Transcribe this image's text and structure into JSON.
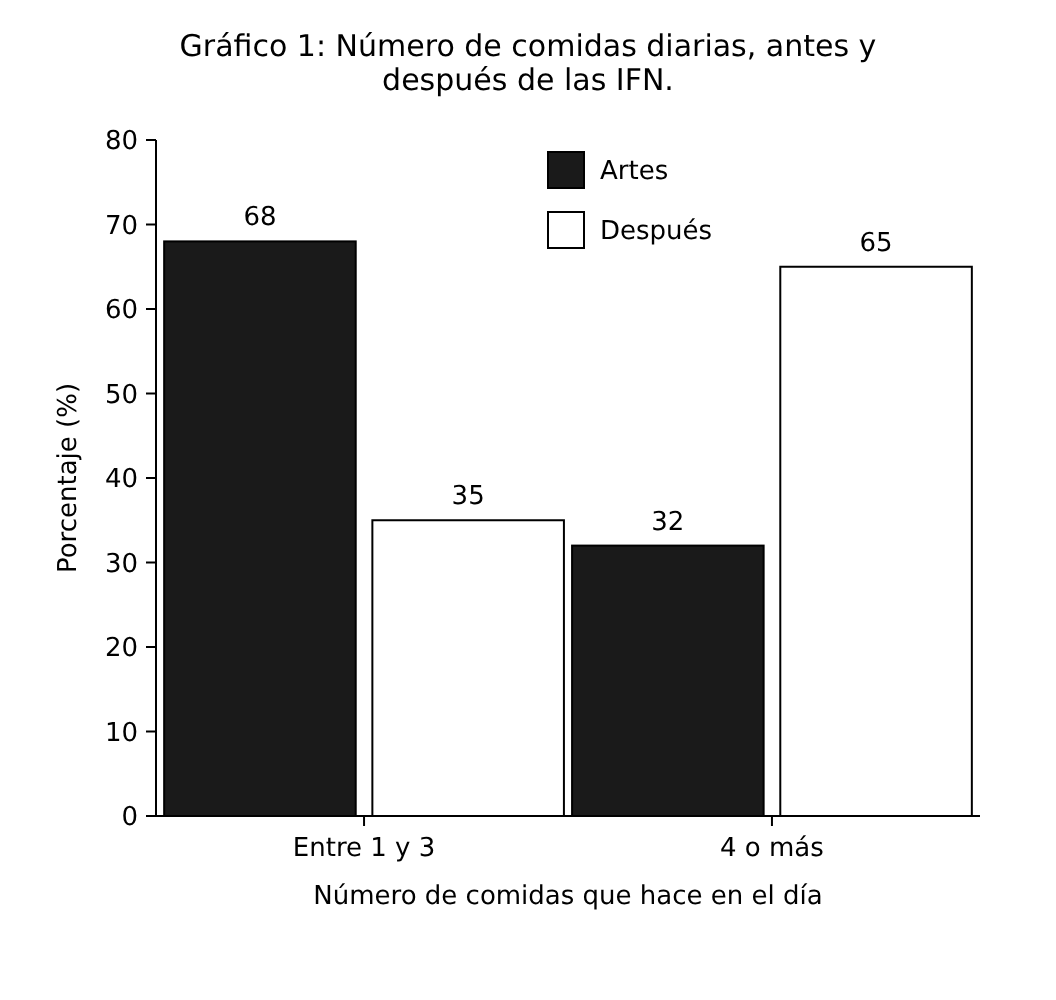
{
  "chart_data": {
    "type": "bar",
    "title": "Gráfico 1: Número de comidas diarias, antes y después de las IFN.",
    "xlabel": "Número de comidas que hace en el día",
    "ylabel": "Porcentaje (%)",
    "categories": [
      "Entre 1 y 3",
      "4 o más"
    ],
    "series": [
      {
        "name": "Artes",
        "color": "#1a1a1a",
        "values": [
          68,
          32
        ]
      },
      {
        "name": "Después",
        "color": "#ffffff",
        "values": [
          35,
          65
        ]
      }
    ],
    "ylim": [
      0,
      80
    ],
    "yticks": [
      0,
      10,
      20,
      30,
      40,
      50,
      60,
      70,
      80
    ],
    "data_labels": true,
    "legend": "top",
    "grid": false
  }
}
